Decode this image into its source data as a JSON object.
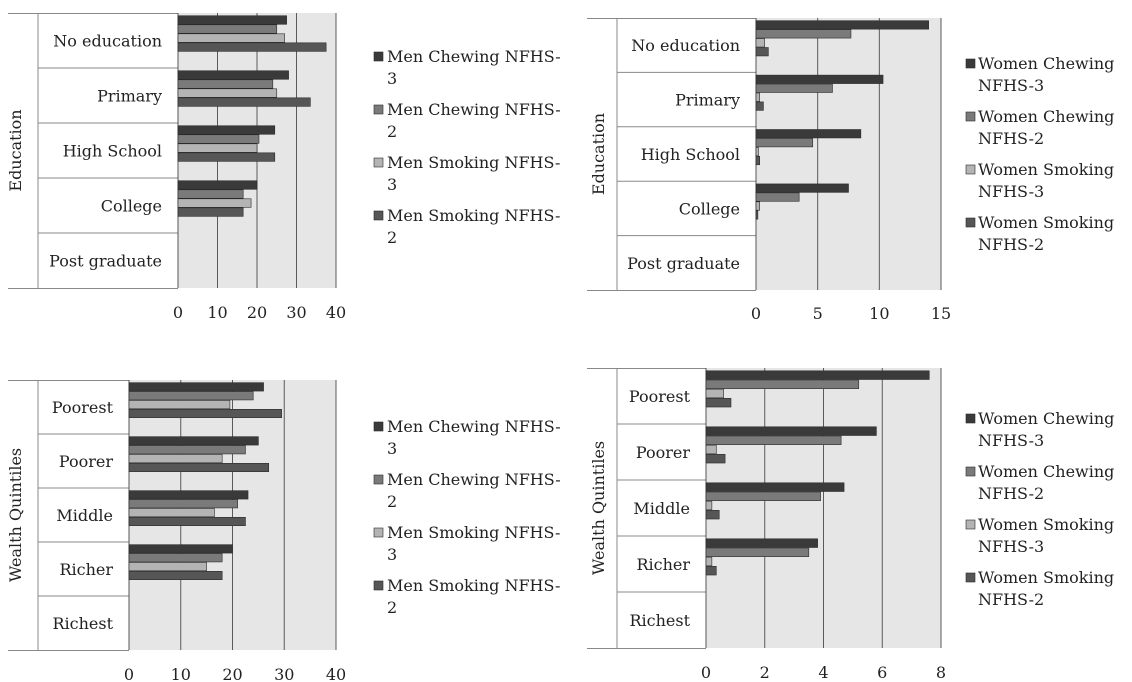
{
  "colors": {
    "chewing_nfhs3": "#3a3a3a",
    "chewing_nfhs2": "#7a7a7a",
    "smoking_nfhs3": "#b4b4b4",
    "smoking_nfhs2": "#565656",
    "plot_background": "#e6e6e6",
    "gridline": "#5a5a5a"
  },
  "chart_data": [
    {
      "type": "bar",
      "orientation": "horizontal",
      "ylabel": "Education",
      "categories": [
        "No education",
        "Primary",
        "High School",
        "College",
        "Post graduate"
      ],
      "xlim": [
        0,
        40
      ],
      "xticks": [
        "0",
        "10",
        "20",
        "30",
        "40"
      ],
      "grid": true,
      "legend_position": "right",
      "series": [
        {
          "name": "Men Chewing NFHS-3",
          "values": [
            27.5,
            28,
            24.5,
            20,
            0
          ]
        },
        {
          "name": "Men Chewing NFHS-2",
          "values": [
            25,
            24,
            20.5,
            16.5,
            0
          ]
        },
        {
          "name": "Men Smoking NFHS-3",
          "values": [
            27,
            25,
            20,
            18.5,
            0
          ]
        },
        {
          "name": "Men Smoking NFHS-2",
          "values": [
            37.5,
            33.5,
            24.5,
            16.5,
            0
          ]
        }
      ]
    },
    {
      "type": "bar",
      "orientation": "horizontal",
      "ylabel": "Education",
      "categories": [
        "No education",
        "Primary",
        "High School",
        "College",
        "Post graduate"
      ],
      "xlim": [
        0,
        15
      ],
      "xticks": [
        "0",
        "5",
        "10",
        "15"
      ],
      "grid": true,
      "legend_position": "right",
      "series": [
        {
          "name": "Women Chewing NFHS-3",
          "values": [
            14,
            10.3,
            8.5,
            7.5,
            0
          ]
        },
        {
          "name": "Women Chewing NFHS-2",
          "values": [
            7.7,
            6.2,
            4.6,
            3.5,
            0
          ]
        },
        {
          "name": "Women Smoking NFHS-3",
          "values": [
            0.7,
            0.3,
            0.2,
            0.3,
            0
          ]
        },
        {
          "name": "Women Smoking NFHS-2",
          "values": [
            1.0,
            0.6,
            0.3,
            0.15,
            0
          ]
        }
      ]
    },
    {
      "type": "bar",
      "orientation": "horizontal",
      "ylabel": "Wealth Quintiles",
      "categories": [
        "Poorest",
        "Poorer",
        "Middle",
        "Richer",
        "Richest"
      ],
      "xlim": [
        0,
        40
      ],
      "xticks": [
        "0",
        "10",
        "20",
        "30",
        "40"
      ],
      "grid": true,
      "legend_position": "right",
      "series": [
        {
          "name": "Men Chewing NFHS-3",
          "values": [
            26,
            25,
            23,
            20,
            0
          ]
        },
        {
          "name": "Men Chewing NFHS-2",
          "values": [
            24,
            22.5,
            21,
            18,
            0
          ]
        },
        {
          "name": "Men Smoking NFHS-3",
          "values": [
            19.5,
            18,
            16.5,
            15,
            0
          ]
        },
        {
          "name": "Men Smoking NFHS-2",
          "values": [
            29.5,
            27,
            22.5,
            18,
            0
          ]
        }
      ]
    },
    {
      "type": "bar",
      "orientation": "horizontal",
      "ylabel": "Wealth Quintiles",
      "categories": [
        "Poorest",
        "Poorer",
        "Middle",
        "Richer",
        "Richest"
      ],
      "xlim": [
        0,
        8
      ],
      "xticks": [
        "0",
        "2",
        "4",
        "6",
        "8"
      ],
      "grid": true,
      "legend_position": "right",
      "series": [
        {
          "name": "Women Chewing NFHS-3",
          "values": [
            7.6,
            5.8,
            4.7,
            3.8,
            0
          ]
        },
        {
          "name": "Women Chewing NFHS-2",
          "values": [
            5.2,
            4.6,
            3.9,
            3.5,
            0
          ]
        },
        {
          "name": "Women Smoking NFHS-3",
          "values": [
            0.6,
            0.35,
            0.2,
            0.2,
            0
          ]
        },
        {
          "name": "Women Smoking NFHS-2",
          "values": [
            0.85,
            0.65,
            0.45,
            0.35,
            0
          ]
        }
      ]
    }
  ],
  "legends": [
    {
      "items": [
        {
          "line1": "Men Chewing NFHS-",
          "line2": "3",
          "color_key": "chewing_nfhs3"
        },
        {
          "line1": "Men Chewing NFHS-",
          "line2": "2",
          "color_key": "chewing_nfhs2"
        },
        {
          "line1": "Men Smoking NFHS-",
          "line2": "3",
          "color_key": "smoking_nfhs3"
        },
        {
          "line1": "Men Smoking NFHS-",
          "line2": "2",
          "color_key": "smoking_nfhs2"
        }
      ]
    },
    {
      "items": [
        {
          "line1": "Women Chewing",
          "line2": "NFHS-3",
          "color_key": "chewing_nfhs3"
        },
        {
          "line1": "Women Chewing",
          "line2": "NFHS-2",
          "color_key": "chewing_nfhs2"
        },
        {
          "line1": "Women Smoking",
          "line2": "NFHS-3",
          "color_key": "smoking_nfhs3"
        },
        {
          "line1": "Women Smoking",
          "line2": "NFHS-2",
          "color_key": "smoking_nfhs2"
        }
      ]
    },
    {
      "items": [
        {
          "line1": "Men Chewing NFHS-",
          "line2": "3",
          "color_key": "chewing_nfhs3"
        },
        {
          "line1": "Men Chewing NFHS-",
          "line2": "2",
          "color_key": "chewing_nfhs2"
        },
        {
          "line1": "Men Smoking NFHS-",
          "line2": "3",
          "color_key": "smoking_nfhs3"
        },
        {
          "line1": "Men Smoking NFHS-",
          "line2": "2",
          "color_key": "smoking_nfhs2"
        }
      ]
    },
    {
      "items": [
        {
          "line1": "Women Chewing",
          "line2": "NFHS-3",
          "color_key": "chewing_nfhs3"
        },
        {
          "line1": "Women Chewing",
          "line2": "NFHS-2",
          "color_key": "chewing_nfhs2"
        },
        {
          "line1": "Women Smoking",
          "line2": "NFHS-3",
          "color_key": "smoking_nfhs3"
        },
        {
          "line1": "Women Smoking",
          "line2": "NFHS-2",
          "color_key": "smoking_nfhs2"
        }
      ]
    }
  ]
}
